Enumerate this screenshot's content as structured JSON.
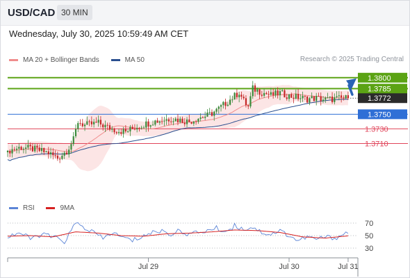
{
  "header": {
    "symbol": "USD/CAD",
    "timeframe": "30 MIN"
  },
  "datetime": "Wednesday, July 30, 2025 10:59:49 AM CET",
  "legend": {
    "ma20": {
      "label": "MA 20 + Bollinger Bands",
      "color": "#f08c8c"
    },
    "ma50": {
      "label": "MA 50",
      "color": "#2a4f8f"
    },
    "rsi": {
      "label": "RSI",
      "color": "#5b84d6"
    },
    "rsi_ma": {
      "label": "9MA",
      "color": "#d62020"
    }
  },
  "credit": "Research © 2025 Trading Central",
  "chart_data": {
    "type": "candlestick",
    "price_range": [
      1.3642,
      1.3815
    ],
    "x_ticks": [
      {
        "label": "Jul 29",
        "index": 62
      },
      {
        "label": "Jul 30",
        "index": 124
      },
      {
        "label": "Jul 31",
        "index": 150
      }
    ],
    "levels": [
      {
        "price": 1.38,
        "label": "1.3800",
        "kind": "resistance",
        "color": "#5ba314"
      },
      {
        "price": 1.3785,
        "label": "1.3785",
        "kind": "resistance",
        "color": "#5ba314"
      },
      {
        "price": 1.375,
        "label": "1.3750",
        "kind": "pivot",
        "color": "#2f6fd6"
      },
      {
        "price": 1.373,
        "label": "1.3730",
        "kind": "support",
        "color": "#e0445a"
      },
      {
        "price": 1.371,
        "label": "1.3710",
        "kind": "support",
        "color": "#e0445a"
      }
    ],
    "last_price": {
      "price": 1.3772,
      "label": "1.3772",
      "color": "#2b2b2b"
    },
    "series": [
      {
        "name": "MA 20 + Bollinger Bands",
        "type": "line_with_band",
        "color": "#f08c8c"
      },
      {
        "name": "MA 50",
        "type": "line",
        "color": "#2a4f8f"
      }
    ],
    "trend_arrow": {
      "from_price": 1.3775,
      "to_price": 1.38,
      "color": "#2a64b6"
    },
    "close_points": [
      [
        0,
        1.37
      ],
      [
        6,
        1.3705
      ],
      [
        12,
        1.3702
      ],
      [
        18,
        1.3697
      ],
      [
        22,
        1.369
      ],
      [
        26,
        1.37
      ],
      [
        29,
        1.3715
      ],
      [
        31,
        1.374
      ],
      [
        34,
        1.3735
      ],
      [
        40,
        1.3738
      ],
      [
        44,
        1.3732
      ],
      [
        48,
        1.3728
      ],
      [
        52,
        1.3726
      ],
      [
        56,
        1.3732
      ],
      [
        60,
        1.3736
      ],
      [
        64,
        1.374
      ],
      [
        68,
        1.3742
      ],
      [
        72,
        1.3744
      ],
      [
        76,
        1.3742
      ],
      [
        80,
        1.374
      ],
      [
        84,
        1.3745
      ],
      [
        88,
        1.3748
      ],
      [
        92,
        1.3755
      ],
      [
        96,
        1.3765
      ],
      [
        100,
        1.3775
      ],
      [
        102,
        1.378
      ],
      [
        104,
        1.3768
      ],
      [
        106,
        1.376
      ],
      [
        108,
        1.3785
      ],
      [
        112,
        1.378
      ],
      [
        116,
        1.3776
      ],
      [
        120,
        1.3779
      ],
      [
        124,
        1.3775
      ],
      [
        128,
        1.3773
      ],
      [
        132,
        1.3771
      ],
      [
        136,
        1.3772
      ],
      [
        140,
        1.377
      ],
      [
        144,
        1.3771
      ],
      [
        148,
        1.3772
      ]
    ],
    "rsi_panel": {
      "range": [
        20,
        80
      ],
      "ticks": [
        70,
        50,
        30
      ],
      "rsi_points": [
        [
          0,
          48
        ],
        [
          5,
          55
        ],
        [
          10,
          45
        ],
        [
          15,
          52
        ],
        [
          20,
          48
        ],
        [
          25,
          40
        ],
        [
          28,
          58
        ],
        [
          30,
          70
        ],
        [
          34,
          62
        ],
        [
          38,
          55
        ],
        [
          42,
          45
        ],
        [
          46,
          55
        ],
        [
          50,
          48
        ],
        [
          55,
          42
        ],
        [
          60,
          50
        ],
        [
          64,
          55
        ],
        [
          68,
          58
        ],
        [
          72,
          52
        ],
        [
          76,
          58
        ],
        [
          80,
          52
        ],
        [
          84,
          55
        ],
        [
          88,
          58
        ],
        [
          92,
          62
        ],
        [
          96,
          56
        ],
        [
          100,
          66
        ],
        [
          104,
          60
        ],
        [
          108,
          64
        ],
        [
          112,
          55
        ],
        [
          116,
          52
        ],
        [
          120,
          58
        ],
        [
          124,
          50
        ],
        [
          128,
          42
        ],
        [
          132,
          48
        ],
        [
          136,
          44
        ],
        [
          140,
          48
        ],
        [
          144,
          46
        ],
        [
          148,
          52
        ],
        [
          151,
          57
        ]
      ],
      "ma_points": [
        [
          0,
          49
        ],
        [
          10,
          50
        ],
        [
          20,
          48
        ],
        [
          30,
          56
        ],
        [
          40,
          54
        ],
        [
          50,
          50
        ],
        [
          60,
          49
        ],
        [
          70,
          53
        ],
        [
          80,
          54
        ],
        [
          90,
          56
        ],
        [
          100,
          59
        ],
        [
          110,
          58
        ],
        [
          120,
          55
        ],
        [
          130,
          48
        ],
        [
          140,
          46
        ],
        [
          151,
          50
        ]
      ]
    }
  }
}
